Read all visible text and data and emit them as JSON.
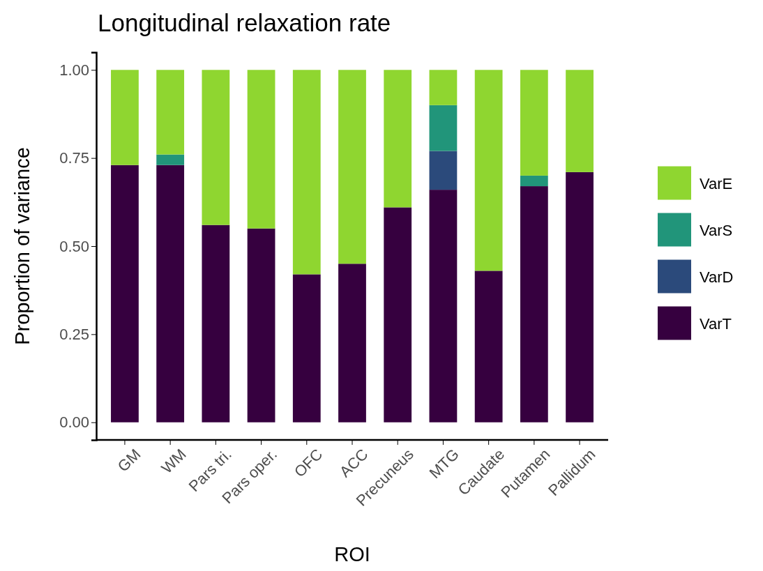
{
  "chart_data": {
    "type": "bar",
    "title": "Longitudinal relaxation rate",
    "xlabel": "ROI",
    "ylabel": "Proportion of variance",
    "categories": [
      "GM",
      "WM",
      "Pars tri.",
      "Pars oper.",
      "OFC",
      "ACC",
      "Precuneus",
      "MTG",
      "Caudate",
      "Putamen",
      "Pallidum"
    ],
    "stacked": true,
    "legend": "right",
    "grid": false,
    "ylim": [
      -0.05,
      1.05
    ],
    "yticks": [
      {
        "value": 0,
        "label": "0.00"
      },
      {
        "value": 0.25,
        "label": "0.25"
      },
      {
        "value": 0.5,
        "label": "0.50"
      },
      {
        "value": 0.75,
        "label": "0.75"
      },
      {
        "value": 1,
        "label": "1.00"
      }
    ],
    "series": [
      {
        "name": "VarT",
        "color": "#36003f",
        "values": [
          0.73,
          0.73,
          0.56,
          0.55,
          0.42,
          0.45,
          0.61,
          0.66,
          0.43,
          0.67,
          0.71
        ]
      },
      {
        "name": "VarD",
        "color": "#2b4a7b",
        "values": [
          0,
          0,
          0,
          0,
          0,
          0,
          0,
          0.11,
          0,
          0,
          0
        ]
      },
      {
        "name": "VarS",
        "color": "#21957a",
        "values": [
          0,
          0.03,
          0,
          0,
          0,
          0,
          0,
          0.13,
          0,
          0.03,
          0
        ]
      },
      {
        "name": "VarE",
        "color": "#8fd630",
        "values": [
          0.27,
          0.24,
          0.44,
          0.45,
          0.58,
          0.55,
          0.39,
          0.1,
          0.57,
          0.3,
          0.29
        ]
      }
    ]
  }
}
